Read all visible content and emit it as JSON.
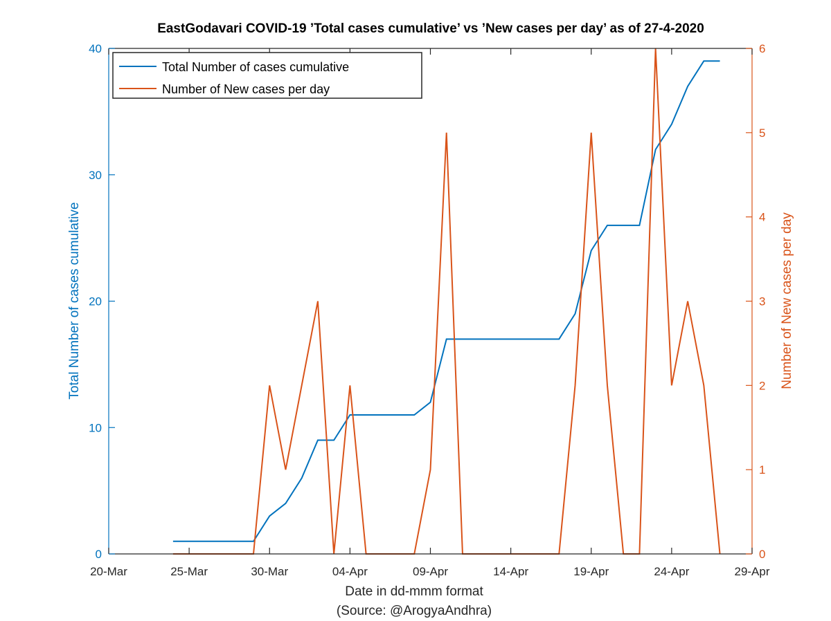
{
  "chart_data": {
    "type": "line",
    "title": "EastGodavari COVID-19 ’Total cases cumulative’ vs ’New cases per day’ as of 27-4-2020",
    "xlabel": "Date in dd-mmm format",
    "source_note": "(Source: @ArogyaAndhra)",
    "ylabel_left": "Total Number of cases cumulative",
    "ylabel_right": "Number of New cases per day",
    "xlim": [
      "2020-03-20",
      "2020-04-29"
    ],
    "ylim_left": [
      0,
      40
    ],
    "ylim_right": [
      0,
      6
    ],
    "x_ticks": [
      {
        "date": "2020-03-20",
        "label": "20-Mar"
      },
      {
        "date": "2020-03-25",
        "label": "25-Mar"
      },
      {
        "date": "2020-03-30",
        "label": "30-Mar"
      },
      {
        "date": "2020-04-04",
        "label": "04-Apr"
      },
      {
        "date": "2020-04-09",
        "label": "09-Apr"
      },
      {
        "date": "2020-04-14",
        "label": "14-Apr"
      },
      {
        "date": "2020-04-19",
        "label": "19-Apr"
      },
      {
        "date": "2020-04-24",
        "label": "24-Apr"
      },
      {
        "date": "2020-04-29",
        "label": "29-Apr"
      }
    ],
    "y_ticks_left": [
      0,
      10,
      20,
      30,
      40
    ],
    "y_ticks_right": [
      0,
      1,
      2,
      3,
      4,
      5,
      6
    ],
    "grid": false,
    "legend_position": "top-left",
    "colors": {
      "cumulative": "#0072BD",
      "new": "#D95319",
      "axis": "#262626"
    },
    "x": [
      "2020-03-24",
      "2020-03-25",
      "2020-03-26",
      "2020-03-27",
      "2020-03-28",
      "2020-03-29",
      "2020-03-30",
      "2020-03-31",
      "2020-04-01",
      "2020-04-02",
      "2020-04-03",
      "2020-04-04",
      "2020-04-05",
      "2020-04-06",
      "2020-04-07",
      "2020-04-08",
      "2020-04-09",
      "2020-04-10",
      "2020-04-11",
      "2020-04-12",
      "2020-04-13",
      "2020-04-14",
      "2020-04-15",
      "2020-04-16",
      "2020-04-17",
      "2020-04-18",
      "2020-04-19",
      "2020-04-20",
      "2020-04-21",
      "2020-04-22",
      "2020-04-23",
      "2020-04-24",
      "2020-04-25",
      "2020-04-26",
      "2020-04-27"
    ],
    "series": [
      {
        "name": "Total Number of cases cumulative",
        "axis": "left",
        "values": [
          1,
          1,
          1,
          1,
          1,
          1,
          3,
          4,
          6,
          9,
          9,
          11,
          11,
          11,
          11,
          11,
          12,
          17,
          17,
          17,
          17,
          17,
          17,
          17,
          17,
          19,
          24,
          26,
          26,
          26,
          32,
          34,
          37,
          39,
          39
        ]
      },
      {
        "name": "Number of New cases per day",
        "axis": "right",
        "values": [
          0,
          0,
          0,
          0,
          0,
          0,
          2,
          1,
          2,
          3,
          0,
          2,
          0,
          0,
          0,
          0,
          1,
          5,
          0,
          0,
          0,
          0,
          0,
          0,
          0,
          2,
          5,
          2,
          0,
          0,
          6,
          2,
          3,
          2,
          0
        ]
      }
    ]
  }
}
